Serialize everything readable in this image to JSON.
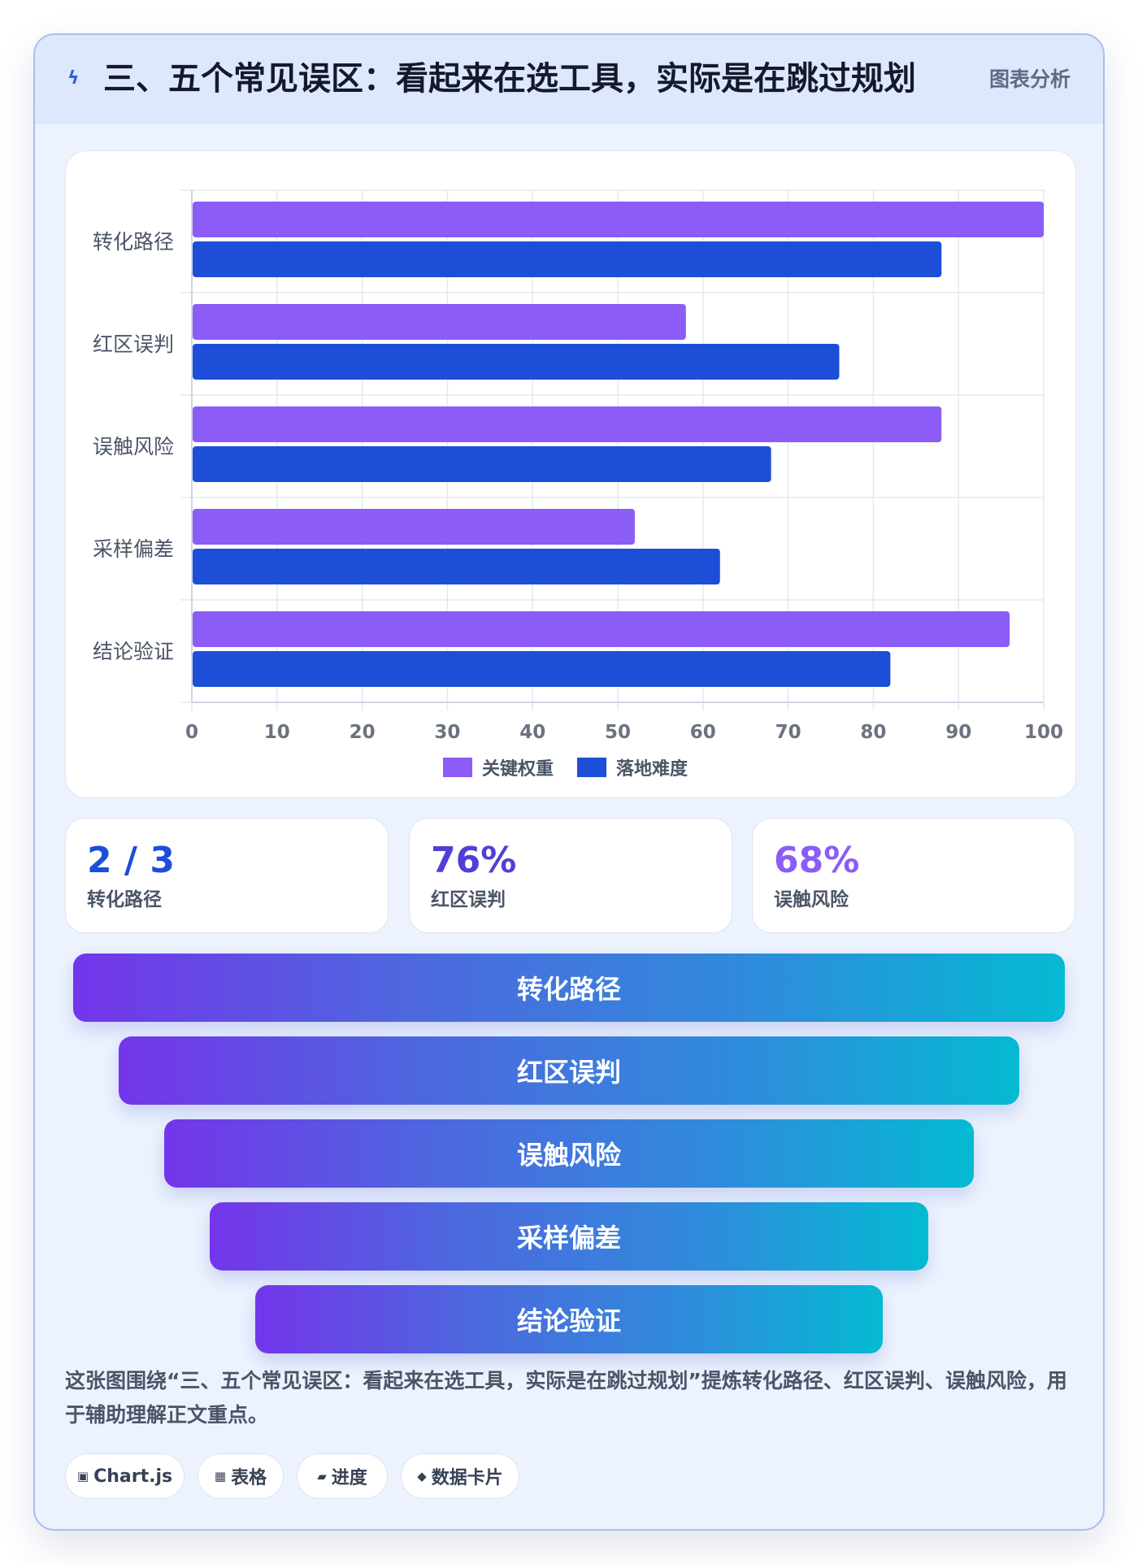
{
  "header": {
    "icon": "lightning-icon",
    "title": "三、五个常见误区：看起来在选工具，实际是在跳过规划",
    "tag": "图表分析"
  },
  "chart_data": {
    "type": "bar",
    "orientation": "horizontal",
    "categories": [
      "转化路径",
      "红区误判",
      "误触风险",
      "采样偏差",
      "结论验证"
    ],
    "series": [
      {
        "name": "关键权重",
        "color": "#8b5cf6",
        "values": [
          100,
          58,
          88,
          52,
          96
        ]
      },
      {
        "name": "落地难度",
        "color": "#1d4ed8",
        "values": [
          88,
          76,
          68,
          62,
          82
        ]
      }
    ],
    "x_ticks": [
      "0",
      "10",
      "20",
      "30",
      "40",
      "50",
      "60",
      "70",
      "80",
      "90",
      "100"
    ],
    "xlim": [
      0,
      100
    ],
    "grid": true,
    "legend_position": "bottom"
  },
  "kpis": [
    {
      "value": "2 / 3",
      "label": "转化路径",
      "color": "#1d4ed8"
    },
    {
      "value": "76%",
      "label": "红区误判",
      "color": "#4f3fd6"
    },
    {
      "value": "68%",
      "label": "误触风险",
      "color": "#8b5cf6"
    }
  ],
  "funnel": [
    "转化路径",
    "红区误判",
    "误触风险",
    "采样偏差",
    "结论验证"
  ],
  "summary": "这张图围绕“三、五个常见误区：看起来在选工具，实际是在跳过规划”提炼转化路径、红区误判、误触风险，用于辅助理解正文重点。",
  "chips": [
    {
      "icon": "▣",
      "label": "Chart.js"
    },
    {
      "icon": "▦",
      "label": "表格"
    },
    {
      "icon": "▰",
      "label": "进度"
    },
    {
      "icon": "◆",
      "label": "数据卡片"
    }
  ]
}
